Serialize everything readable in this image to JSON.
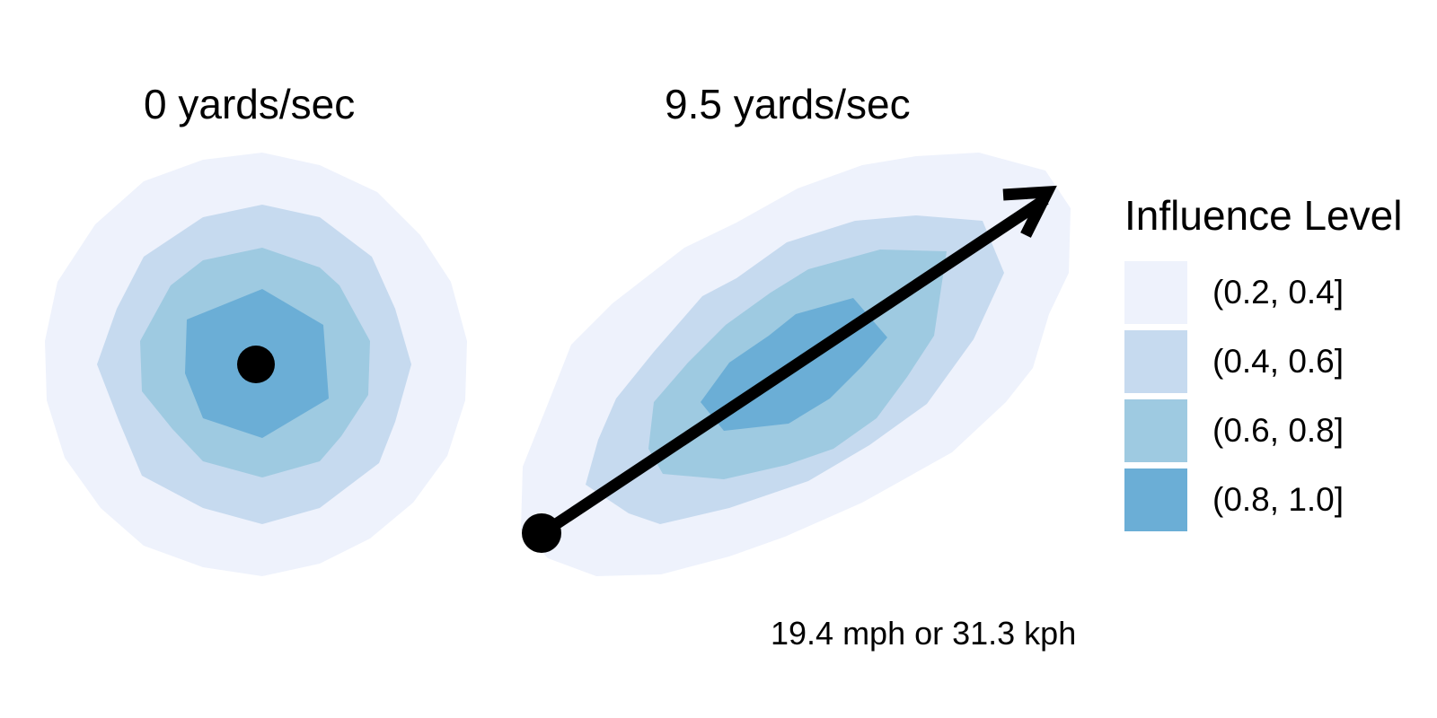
{
  "panels": [
    {
      "title": "0 yards/sec"
    },
    {
      "title": "9.5 yards/sec"
    }
  ],
  "speed_note": "19.4 mph or 31.3 kph",
  "legend": {
    "title": "Influence Level",
    "items": [
      {
        "label": "(0.2, 0.4]",
        "color": "#eef2fc"
      },
      {
        "label": "(0.4, 0.6]",
        "color": "#c6daef"
      },
      {
        "label": "(0.6, 0.8]",
        "color": "#9ecae1"
      },
      {
        "label": "(0.8, 1.0]",
        "color": "#6baed6"
      }
    ]
  },
  "colors": {
    "marker": "#000000",
    "arrow": "#000000"
  },
  "icons": {
    "player-marker": "filled circle",
    "direction-arrow": "arrow"
  }
}
